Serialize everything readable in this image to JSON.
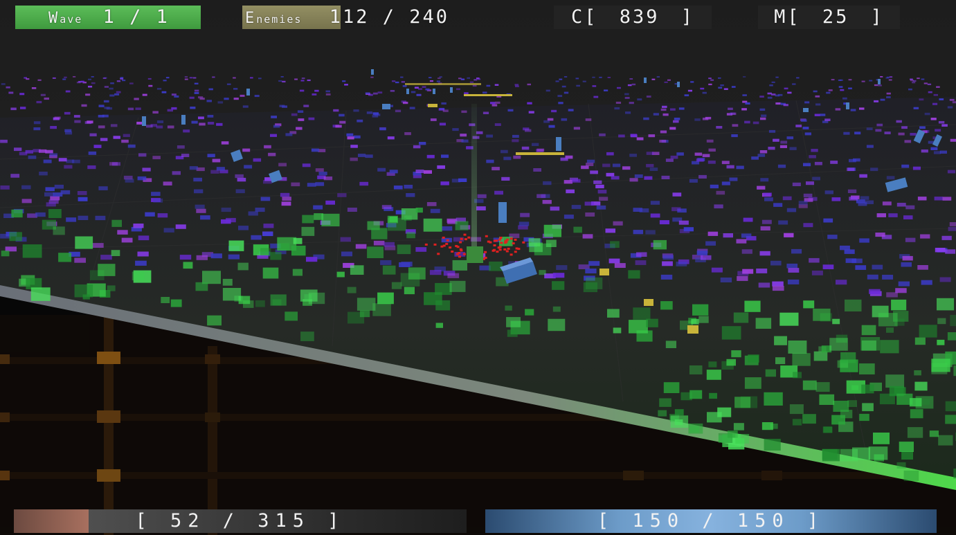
{
  "hud": {
    "wave": {
      "label_main": "W",
      "label_small": "ave",
      "value": "1 / 1"
    },
    "enemies": {
      "label_main": "E",
      "label_small": "nemies",
      "value": "112 / 240"
    },
    "credits": {
      "label": "C[",
      "value": "839",
      "close": "]"
    },
    "matter": {
      "label": "M[",
      "value": "25",
      "close": "]"
    }
  },
  "health": {
    "text": "[ 52 / 315 ]",
    "current": 52,
    "max": 315
  },
  "energy": {
    "text": "[ 150 / 150 ]",
    "current": 150,
    "max": 150
  },
  "colors": {
    "wave_panel": "#4fad4c",
    "enemies_panel": "#857f58",
    "health_fill": "#a8705f",
    "energy_fill": "#86b2de",
    "enemy_purple": "#8a3cf0",
    "enemy_blue": "#3c3cd0",
    "creep_green": "#3ad04a",
    "tower_blue": "#4a7ec0",
    "core_red": "#e02020",
    "token_yellow": "#c8b43a",
    "lava_orange": "#e08a1c"
  }
}
